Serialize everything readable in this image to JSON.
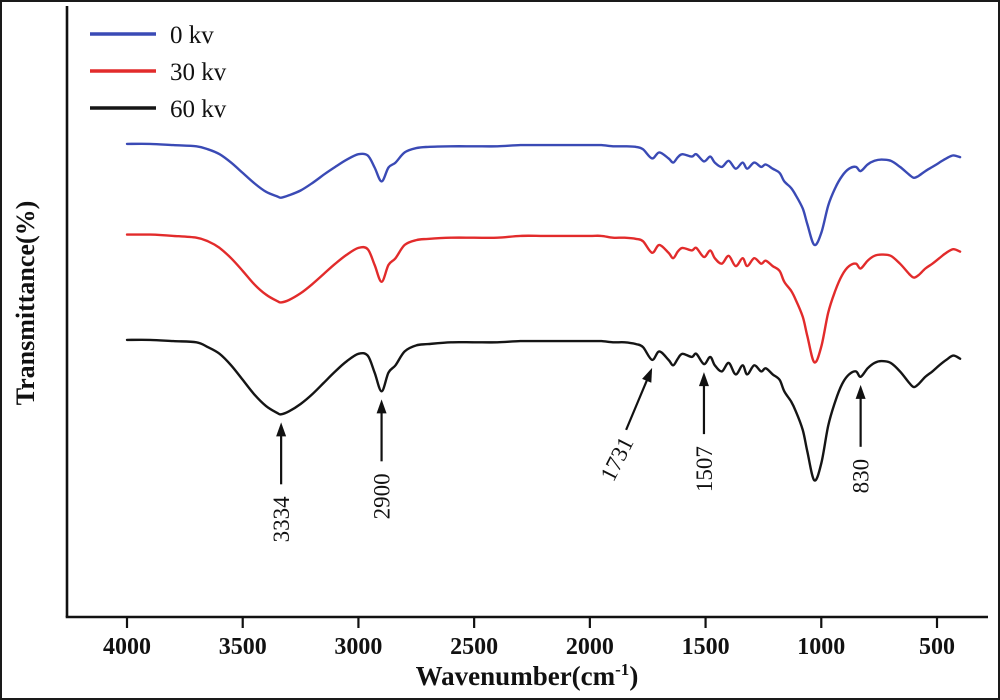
{
  "figure": {
    "ylabel": "Transmittance(%)",
    "xlabel_prefix": "Wavenumber(cm",
    "xlabel_sup": "-1",
    "xlabel_suffix": ")"
  },
  "chart_data": {
    "type": "line",
    "title": "",
    "xlabel": "Wavenumber(cm⁻¹)",
    "ylabel": "Transmittance(%)",
    "x_axis_reversed": true,
    "x_range": [
      4000,
      400
    ],
    "x_ticks": [
      4000,
      3500,
      3000,
      2500,
      2000,
      1500,
      1000,
      500
    ],
    "y_unit": "arbitrary units (no y tick labels shown)",
    "grid": false,
    "legend_position": "top-left",
    "x": [
      4000,
      3900,
      3800,
      3700,
      3650,
      3600,
      3550,
      3500,
      3450,
      3400,
      3350,
      3334,
      3300,
      3250,
      3200,
      3150,
      3100,
      3050,
      3000,
      2960,
      2930,
      2900,
      2870,
      2840,
      2800,
      2750,
      2700,
      2600,
      2500,
      2400,
      2300,
      2200,
      2100,
      2000,
      1950,
      1900,
      1850,
      1800,
      1770,
      1731,
      1700,
      1660,
      1640,
      1620,
      1600,
      1560,
      1540,
      1507,
      1480,
      1460,
      1430,
      1400,
      1370,
      1340,
      1320,
      1290,
      1260,
      1240,
      1210,
      1180,
      1160,
      1130,
      1110,
      1080,
      1060,
      1030,
      1000,
      970,
      940,
      910,
      880,
      850,
      830,
      800,
      770,
      740,
      700,
      660,
      620,
      600,
      580,
      550,
      520,
      490,
      460,
      430,
      400
    ],
    "series": [
      {
        "name": "0 kv",
        "color": "#3a4ab5",
        "values": [
          78.2,
          78.2,
          78.0,
          77.8,
          77.3,
          76.5,
          75.1,
          73.4,
          71.7,
          70.3,
          69.5,
          69.3,
          69.7,
          70.5,
          71.7,
          73.1,
          74.4,
          75.6,
          76.5,
          76.3,
          74.3,
          72.0,
          74.3,
          75.1,
          76.8,
          77.5,
          77.7,
          77.8,
          77.8,
          77.8,
          78.0,
          78.0,
          78.0,
          78.0,
          78.0,
          77.8,
          77.8,
          77.7,
          77.3,
          75.8,
          76.8,
          75.8,
          75.1,
          76.0,
          76.5,
          76.1,
          76.5,
          75.3,
          76.1,
          75.1,
          74.4,
          75.4,
          74.1,
          75.1,
          74.1,
          75.1,
          74.4,
          74.8,
          74.1,
          73.4,
          72.0,
          70.9,
          69.7,
          67.5,
          64.9,
          61.5,
          63.5,
          68.0,
          70.9,
          72.9,
          74.1,
          74.4,
          73.7,
          74.8,
          75.4,
          75.6,
          75.4,
          74.4,
          73.1,
          72.6,
          72.9,
          73.7,
          74.4,
          75.1,
          75.8,
          76.3,
          76.0
        ]
      },
      {
        "name": "30 kv",
        "color": "#e22b2b",
        "values": [
          63.2,
          63.2,
          63.0,
          62.7,
          62.1,
          61.0,
          59.3,
          57.2,
          55.0,
          53.3,
          52.2,
          52.0,
          52.4,
          53.5,
          55.0,
          56.7,
          58.4,
          59.9,
          61.0,
          60.8,
          58.2,
          55.4,
          58.2,
          59.3,
          61.5,
          62.3,
          62.5,
          62.7,
          62.7,
          62.7,
          63.0,
          63.0,
          63.0,
          63.0,
          63.0,
          62.7,
          62.7,
          62.5,
          62.1,
          60.2,
          61.5,
          60.2,
          59.3,
          60.4,
          61.0,
          60.6,
          61.0,
          59.5,
          60.6,
          59.3,
          58.4,
          59.7,
          58.0,
          59.3,
          58.0,
          59.3,
          58.4,
          58.9,
          58.0,
          57.2,
          55.4,
          53.9,
          52.4,
          49.6,
          46.4,
          42.1,
          44.7,
          50.3,
          53.9,
          56.5,
          58.0,
          58.4,
          57.6,
          58.9,
          59.7,
          59.9,
          59.7,
          58.4,
          56.7,
          56.1,
          56.5,
          57.6,
          58.4,
          59.3,
          60.2,
          60.8,
          60.4
        ]
      },
      {
        "name": "60 kv",
        "color": "#151515",
        "values": [
          45.8,
          45.8,
          45.6,
          45.4,
          44.6,
          43.5,
          41.6,
          39.2,
          36.8,
          34.9,
          33.7,
          33.5,
          34.0,
          35.2,
          36.8,
          38.7,
          40.6,
          42.3,
          43.5,
          43.2,
          40.4,
          37.3,
          40.4,
          41.6,
          43.9,
          44.9,
          45.1,
          45.4,
          45.4,
          45.4,
          45.6,
          45.6,
          45.6,
          45.6,
          45.6,
          45.4,
          45.4,
          45.1,
          44.6,
          42.5,
          43.9,
          42.5,
          41.6,
          42.7,
          43.5,
          43.0,
          43.5,
          41.8,
          43.0,
          41.6,
          40.6,
          42.0,
          40.1,
          41.6,
          40.1,
          41.6,
          40.6,
          41.1,
          40.1,
          39.2,
          37.3,
          35.6,
          34.0,
          30.9,
          27.3,
          22.6,
          25.4,
          31.6,
          35.6,
          38.5,
          40.1,
          40.6,
          39.7,
          41.1,
          42.0,
          42.3,
          42.0,
          40.6,
          38.7,
          38.0,
          38.5,
          39.7,
          40.6,
          41.6,
          42.5,
          43.2,
          42.7
        ]
      }
    ],
    "annotations": [
      {
        "label": "3334",
        "x": 3334
      },
      {
        "label": "2900",
        "x": 2900
      },
      {
        "label": "1731",
        "x": 1731
      },
      {
        "label": "1507",
        "x": 1507
      },
      {
        "label": "830",
        "x": 830
      }
    ]
  }
}
